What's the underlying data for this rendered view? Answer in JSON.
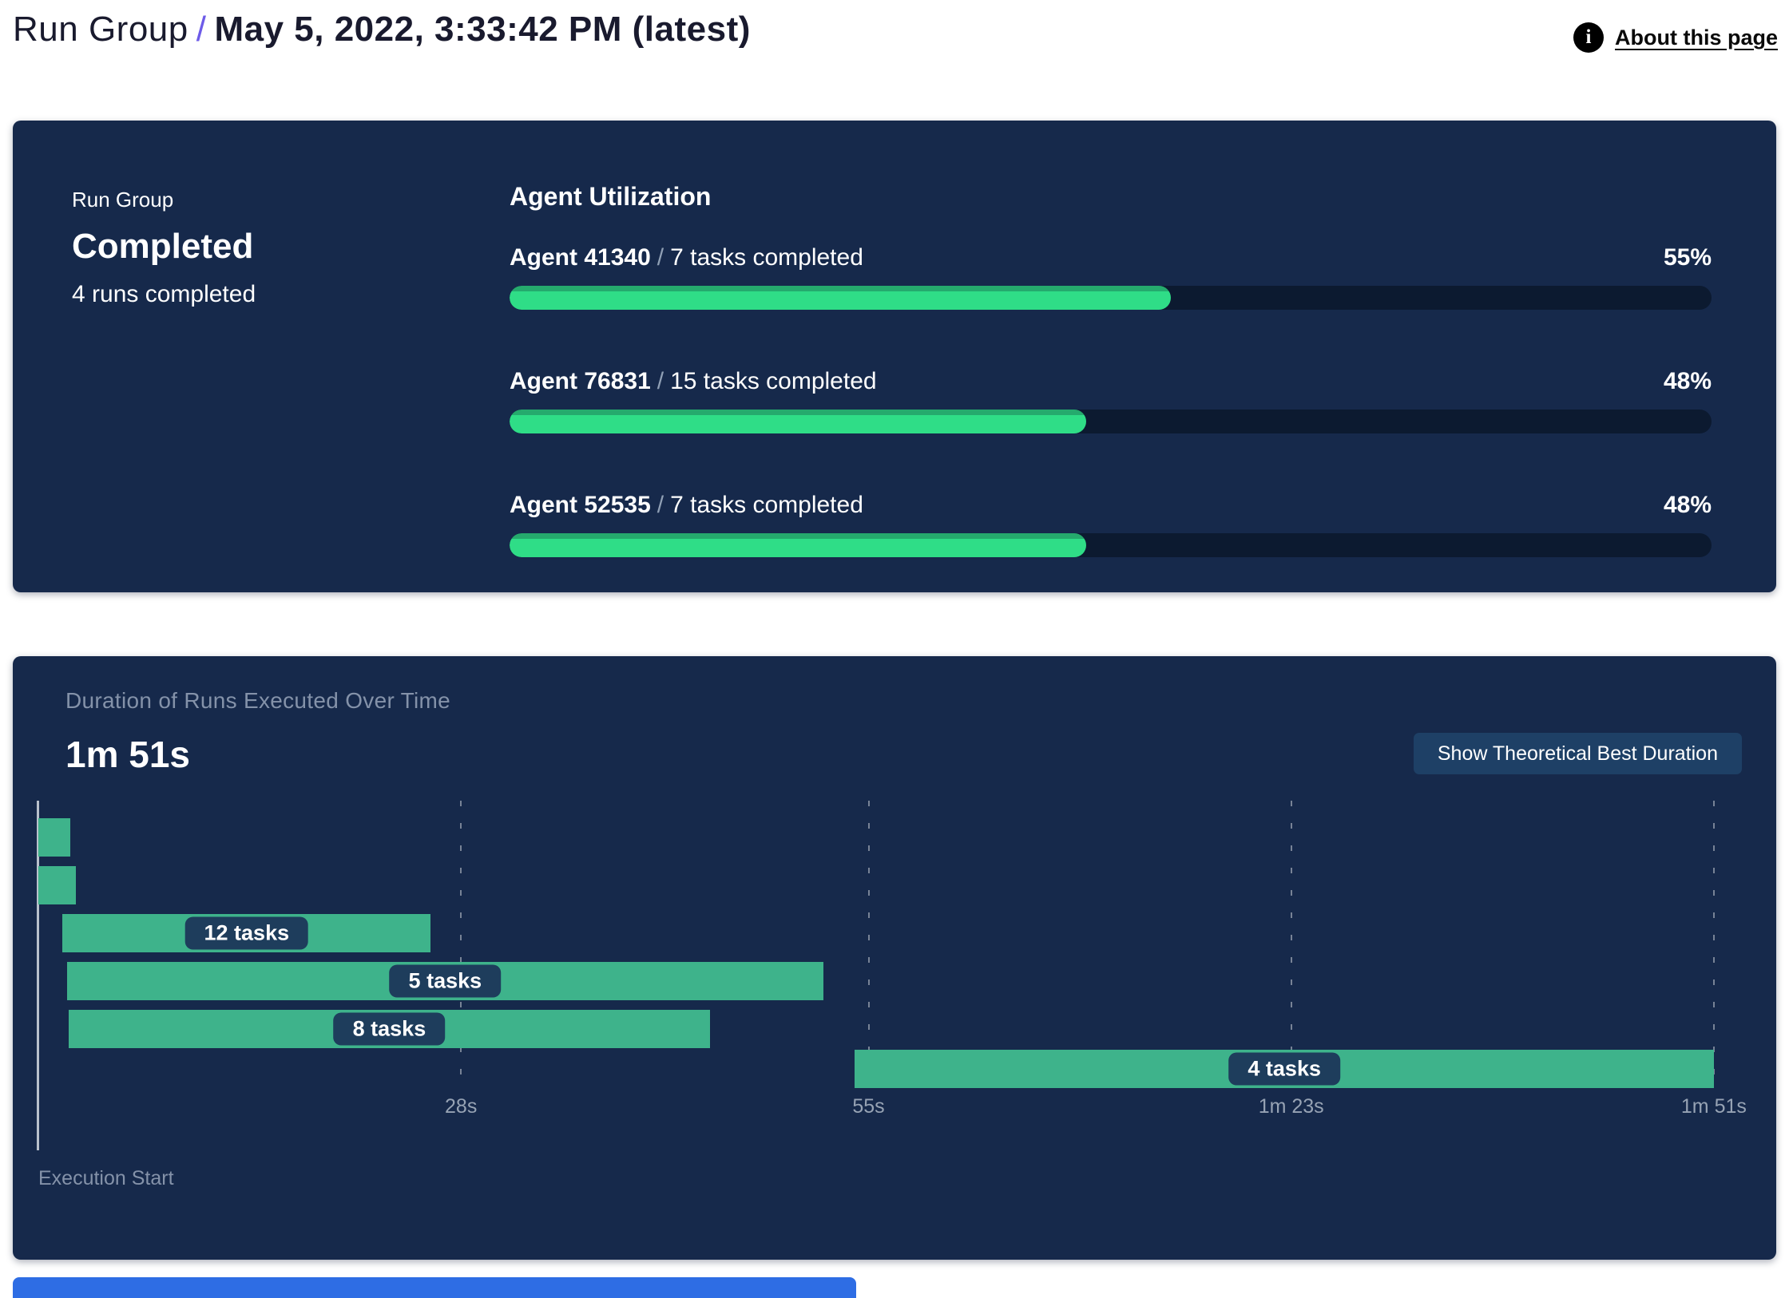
{
  "header": {
    "breadcrumb_root": "Run Group",
    "breadcrumb_separator": "/",
    "title": "May 5, 2022, 3:33:42 PM (latest)",
    "about_link": "About this page",
    "info_icon_glyph": "i"
  },
  "summary_card": {
    "label": "Run Group",
    "status": "Completed",
    "runs_completed": "4 runs completed",
    "utilization": {
      "title": "Agent Utilization",
      "separator": "/",
      "agents": [
        {
          "name": "Agent 41340",
          "tasks": "7 tasks completed",
          "percent": "55%",
          "value": 55
        },
        {
          "name": "Agent 76831",
          "tasks": "15 tasks completed",
          "percent": "48%",
          "value": 48
        },
        {
          "name": "Agent 52535",
          "tasks": "7 tasks completed",
          "percent": "48%",
          "value": 48
        }
      ]
    }
  },
  "duration_card": {
    "title": "Duration of Runs Executed Over Time",
    "total_duration": "1m 51s",
    "button_label": "Show Theoretical Best Duration",
    "origin_label": "Execution Start"
  },
  "chart_data": {
    "type": "bar",
    "subtype": "gantt-timeline",
    "title": "Duration of Runs Executed Over Time",
    "total_duration_label": "1m 51s",
    "x_axis": {
      "unit": "seconds",
      "range": [
        0,
        111
      ],
      "tick_seconds": [
        28,
        55,
        83,
        111
      ],
      "tick_labels": [
        "28s",
        "55s",
        "1m 23s",
        "1m 51s"
      ],
      "origin_label": "Execution Start"
    },
    "grid": "dashed-vertical",
    "bars": [
      {
        "row": 1,
        "start_s": 0.0,
        "end_s": 2.1,
        "label": ""
      },
      {
        "row": 2,
        "start_s": 0.0,
        "end_s": 2.5,
        "label": ""
      },
      {
        "row": 3,
        "start_s": 1.6,
        "end_s": 26.0,
        "label": "12 tasks"
      },
      {
        "row": 4,
        "start_s": 1.9,
        "end_s": 52.0,
        "label": "5 tasks"
      },
      {
        "row": 5,
        "start_s": 2.0,
        "end_s": 44.5,
        "label": "8 tasks"
      },
      {
        "row": 6,
        "start_s": 54.1,
        "end_s": 111.0,
        "label": "4 tasks"
      }
    ]
  },
  "colors": {
    "card_bg": "#16294b",
    "track": "#0c1a30",
    "progress_green": "#2fdd87",
    "progress_green_dark": "#25aa6d",
    "gantt_green": "#3eb38b",
    "pill_bg": "#1e3d5c",
    "button_bg": "#1e4066",
    "purple": "#6d5be8",
    "muted": "#8492a9",
    "tick_text": "#97a3b4",
    "axis_line": "#b9c1cc",
    "partial_blue": "#2e6de4"
  }
}
